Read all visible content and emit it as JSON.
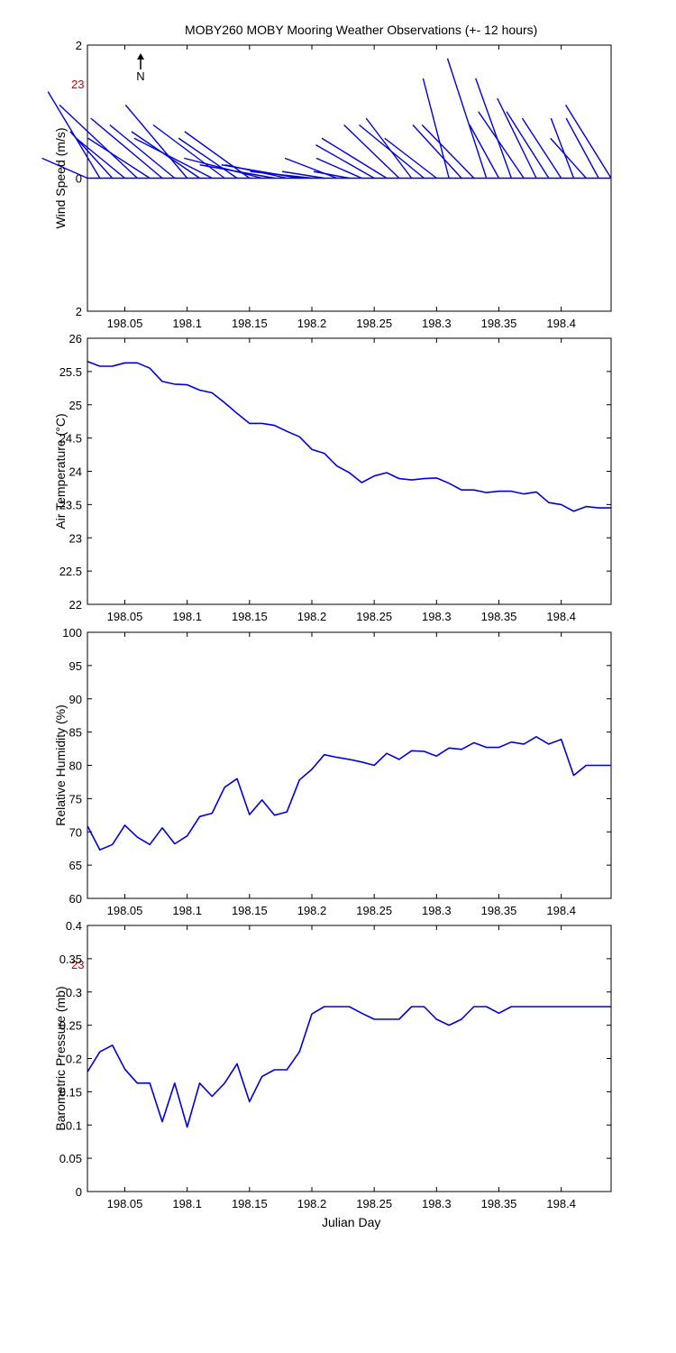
{
  "title": "MOBY260 MOBY Mooring Weather Observations (+- 12 hours)",
  "north_label": "N",
  "red_marks": [
    "23",
    "23"
  ],
  "x_axis_label": "Julian Day",
  "colors": {
    "series": "#0000dd",
    "axes": "#000000",
    "red_mark": "#cc0000"
  },
  "chart_data": [
    {
      "type": "line",
      "subtype": "wind-sticks",
      "ylabel": "Wind Speed (m/s)",
      "xlim": [
        198.02,
        198.44
      ],
      "ylim": [
        -2,
        2
      ],
      "y_ticks": [
        "2",
        "0",
        "2"
      ],
      "x_ticks": [
        "198.05",
        "198.1",
        "198.15",
        "198.2",
        "198.25",
        "198.3",
        "198.35",
        "198.4"
      ],
      "x": [
        198.02,
        198.03,
        198.04,
        198.05,
        198.06,
        198.07,
        198.08,
        198.09,
        198.1,
        198.11,
        198.12,
        198.13,
        198.14,
        198.15,
        198.16,
        198.17,
        198.18,
        198.19,
        198.2,
        198.21,
        198.22,
        198.23,
        198.24,
        198.25,
        198.26,
        198.27,
        198.28,
        198.29,
        198.3,
        198.31,
        198.32,
        198.33,
        198.34,
        198.35,
        198.36,
        198.37,
        198.38,
        198.39,
        198.4,
        198.41,
        198.42,
        198.43,
        198.44
      ],
      "u": [
        -1.4,
        -1.6,
        -1.3,
        -1.5,
        -2.4,
        -1.9,
        -2.2,
        -2.0,
        -1.9,
        -2.1,
        -2.4,
        -2.2,
        -1.8,
        -2.0,
        -2.4,
        -2.3,
        -1.9,
        -2.4,
        -1.9,
        -1.3,
        -1.6,
        -1.1,
        -1.4,
        -1.8,
        -2.0,
        -1.7,
        -1.4,
        -2.0,
        -1.6,
        -0.8,
        -1.5,
        -1.6,
        -1.2,
        -0.9,
        -1.1,
        -1.4,
        -1.2,
        -1.3,
        -1.2,
        -0.7,
        -1.1,
        -1.0,
        -1.4
      ],
      "v": [
        0.3,
        1.3,
        0.7,
        0.6,
        1.1,
        0.6,
        0.9,
        0.8,
        1.1,
        0.7,
        0.6,
        0.8,
        0.6,
        0.7,
        0.3,
        0.2,
        0.2,
        0.2,
        0.1,
        0.1,
        0.3,
        0.1,
        0.3,
        0.5,
        0.6,
        0.8,
        0.9,
        0.8,
        0.6,
        1.5,
        0.8,
        0.8,
        1.8,
        0.8,
        1.5,
        1.0,
        1.2,
        1.0,
        0.9,
        0.9,
        0.6,
        0.9,
        1.1
      ]
    },
    {
      "type": "line",
      "ylabel": "Air Temperature (°C)",
      "xlim": [
        198.02,
        198.44
      ],
      "ylim": [
        22,
        26
      ],
      "y_ticks": [
        "26",
        "25.5",
        "25",
        "24.5",
        "24",
        "23.5",
        "23",
        "22.5",
        "22"
      ],
      "x_ticks": [
        "198.05",
        "198.1",
        "198.15",
        "198.2",
        "198.25",
        "198.3",
        "198.35",
        "198.4"
      ],
      "series": [
        {
          "x": [
            198.02,
            198.03,
            198.04,
            198.05,
            198.06,
            198.07,
            198.08,
            198.09,
            198.1,
            198.11,
            198.12,
            198.13,
            198.14,
            198.15,
            198.16,
            198.17,
            198.18,
            198.19,
            198.2,
            198.21,
            198.22,
            198.23,
            198.24,
            198.25,
            198.26,
            198.27,
            198.28,
            198.29,
            198.3,
            198.31,
            198.32,
            198.33,
            198.34,
            198.35,
            198.36,
            198.37,
            198.38,
            198.39,
            198.4,
            198.41,
            198.42,
            198.43,
            198.44
          ],
          "y": [
            25.65,
            25.58,
            25.58,
            25.63,
            25.63,
            25.55,
            25.35,
            25.31,
            25.3,
            25.22,
            25.18,
            25.03,
            24.87,
            24.72,
            24.72,
            24.69,
            24.6,
            24.52,
            24.33,
            24.27,
            24.08,
            23.98,
            23.83,
            23.93,
            23.98,
            23.89,
            23.87,
            23.89,
            23.9,
            23.82,
            23.72,
            23.72,
            23.68,
            23.7,
            23.7,
            23.66,
            23.69,
            23.53,
            23.5,
            23.4,
            23.47,
            23.45,
            23.45
          ]
        }
      ]
    },
    {
      "type": "line",
      "ylabel": "Relative Humidity (%)",
      "xlim": [
        198.02,
        198.44
      ],
      "ylim": [
        60,
        100
      ],
      "y_ticks": [
        "100",
        "95",
        "90",
        "85",
        "80",
        "75",
        "70",
        "65",
        "60"
      ],
      "x_ticks": [
        "198.05",
        "198.1",
        "198.15",
        "198.2",
        "198.25",
        "198.3",
        "198.35",
        "198.4"
      ],
      "series": [
        {
          "x": [
            198.02,
            198.03,
            198.04,
            198.05,
            198.06,
            198.07,
            198.08,
            198.09,
            198.1,
            198.11,
            198.12,
            198.13,
            198.14,
            198.15,
            198.16,
            198.17,
            198.18,
            198.19,
            198.2,
            198.21,
            198.22,
            198.23,
            198.24,
            198.25,
            198.26,
            198.27,
            198.28,
            198.29,
            198.3,
            198.31,
            198.32,
            198.33,
            198.34,
            198.35,
            198.36,
            198.37,
            198.38,
            198.39,
            198.4,
            198.41,
            198.42,
            198.43,
            198.44
          ],
          "y": [
            70.9,
            67.3,
            68.1,
            71.0,
            69.2,
            68.1,
            70.6,
            68.2,
            69.4,
            72.3,
            72.8,
            76.7,
            78.0,
            72.6,
            74.8,
            72.5,
            73.0,
            77.8,
            79.4,
            81.6,
            81.2,
            80.9,
            80.5,
            80.0,
            81.8,
            80.9,
            82.2,
            82.1,
            81.4,
            82.6,
            82.4,
            83.4,
            82.7,
            82.7,
            83.5,
            83.2,
            84.3,
            83.2,
            83.9,
            78.5,
            80.0,
            80.0,
            80.0
          ]
        }
      ]
    },
    {
      "type": "line",
      "ylabel": "Barometric Pressure (mb)",
      "xlabel": "Julian Day",
      "xlim": [
        198.02,
        198.44
      ],
      "ylim": [
        0,
        0.4
      ],
      "y_ticks": [
        "0.4",
        "0.35",
        "0.3",
        "0.25",
        "0.2",
        "0.15",
        "0.1",
        "0.05",
        "0"
      ],
      "x_ticks": [
        "198.05",
        "198.1",
        "198.15",
        "198.2",
        "198.25",
        "198.3",
        "198.35",
        "198.4"
      ],
      "series": [
        {
          "x": [
            198.02,
            198.03,
            198.04,
            198.05,
            198.06,
            198.07,
            198.08,
            198.09,
            198.1,
            198.11,
            198.12,
            198.13,
            198.14,
            198.15,
            198.16,
            198.17,
            198.18,
            198.19,
            198.2,
            198.21,
            198.22,
            198.23,
            198.24,
            198.25,
            198.26,
            198.27,
            198.28,
            198.29,
            198.3,
            198.31,
            198.32,
            198.33,
            198.34,
            198.35,
            198.36,
            198.37,
            198.38,
            198.39,
            198.4,
            198.41,
            198.42,
            198.43,
            198.44
          ],
          "y": [
            0.18,
            0.21,
            0.22,
            0.184,
            0.163,
            0.163,
            0.105,
            0.163,
            0.097,
            0.163,
            0.143,
            0.163,
            0.192,
            0.135,
            0.173,
            0.183,
            0.183,
            0.21,
            0.267,
            0.278,
            0.278,
            0.278,
            0.268,
            0.259,
            0.259,
            0.259,
            0.278,
            0.278,
            0.259,
            0.25,
            0.259,
            0.278,
            0.278,
            0.268,
            0.278,
            0.278,
            0.278,
            0.278,
            0.278,
            0.278,
            0.278,
            0.278,
            0.278
          ]
        }
      ]
    }
  ]
}
